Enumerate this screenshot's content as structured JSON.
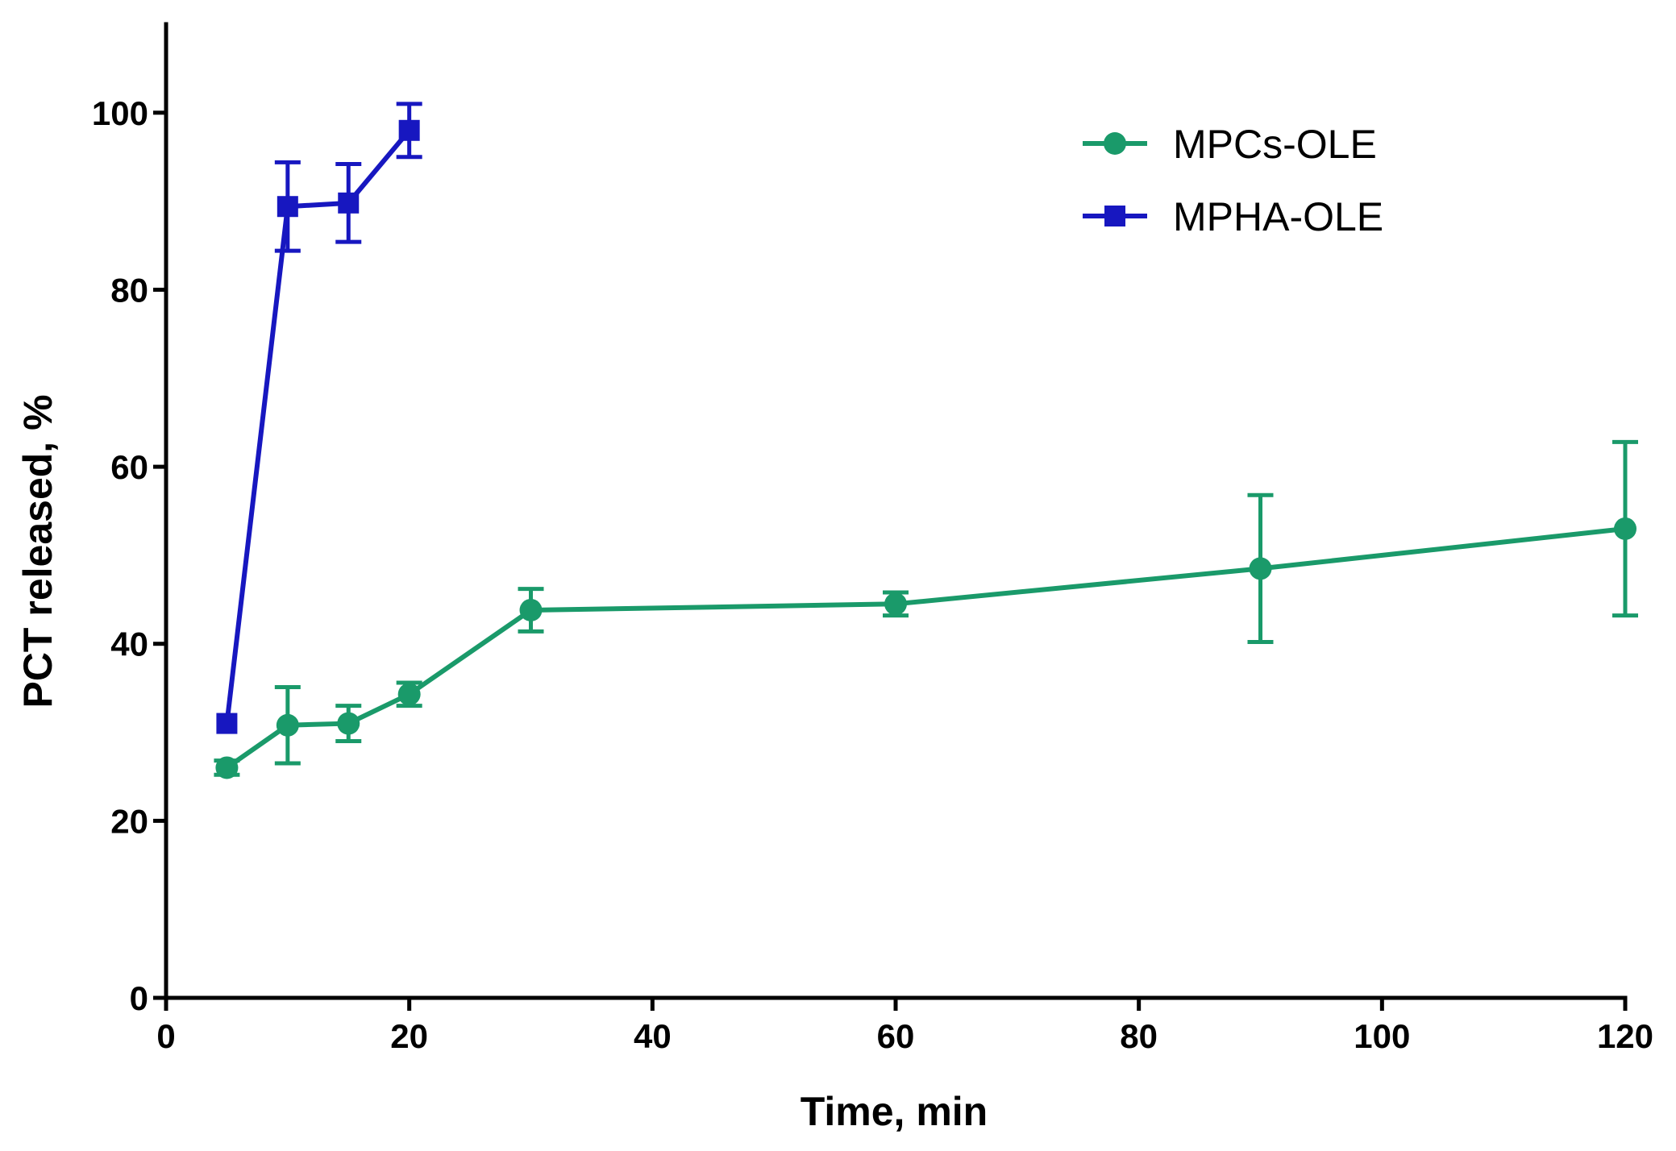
{
  "chart_data": {
    "type": "line",
    "xlabel": "Time, min",
    "ylabel": "PCT released, %",
    "xlim": [
      0,
      120
    ],
    "ylim": [
      0,
      110
    ],
    "xticks": [
      0,
      20,
      40,
      60,
      80,
      100,
      120
    ],
    "yticks": [
      0,
      20,
      40,
      60,
      80,
      100
    ],
    "grid": false,
    "legend_position": "top-right",
    "series": [
      {
        "name": "MPCs-OLE",
        "color": "#1a9a6a",
        "marker": "circle",
        "x": [
          5,
          10,
          15,
          20,
          30,
          60,
          90,
          120
        ],
        "y": [
          26,
          30.8,
          31,
          34.3,
          43.8,
          44.5,
          48.5,
          53
        ],
        "err": [
          0.8,
          4.3,
          2,
          1.3,
          2.4,
          1.3,
          8.3,
          9.8
        ]
      },
      {
        "name": "MPHA-OLE",
        "color": "#1717c0",
        "marker": "square",
        "x": [
          5,
          10,
          15,
          20
        ],
        "y": [
          31,
          89.4,
          89.8,
          98
        ],
        "err": [
          0,
          5,
          4.4,
          3
        ]
      }
    ]
  }
}
